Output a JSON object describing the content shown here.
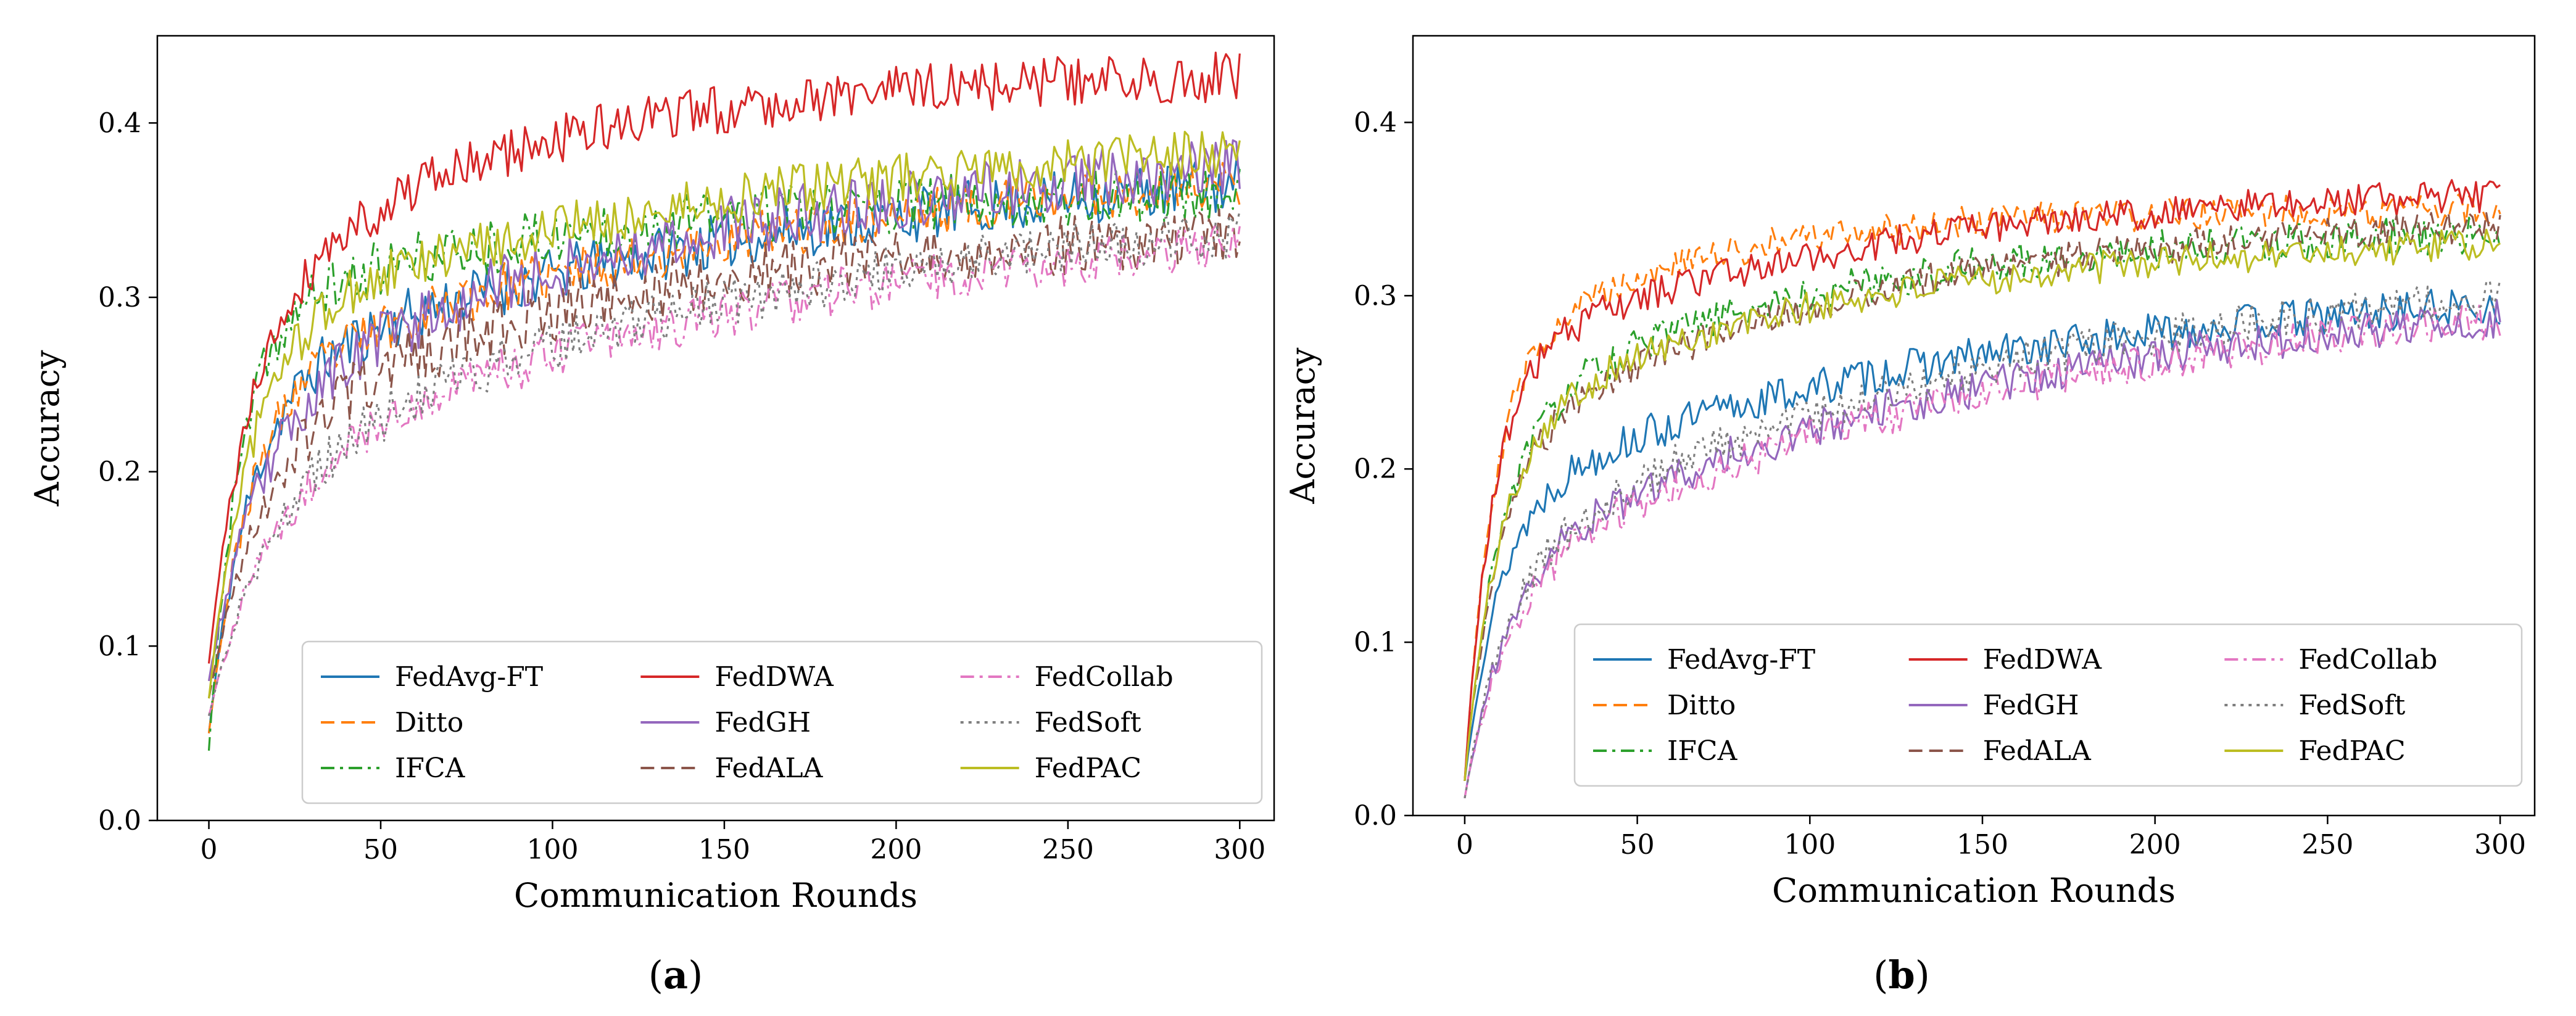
{
  "chart_data": [
    {
      "type": "line",
      "panel_label_open": "(",
      "panel_label_letter": "a",
      "panel_label_close": ")",
      "xlabel": "Communication Rounds",
      "ylabel": "Accuracy",
      "xlim": [
        -15,
        310
      ],
      "ylim": [
        0.0,
        0.45
      ],
      "xticks": [
        0,
        50,
        100,
        150,
        200,
        250,
        300
      ],
      "yticks": [
        0.0,
        0.1,
        0.2,
        0.3,
        0.4
      ],
      "xtick_labels": [
        "0",
        "50",
        "100",
        "150",
        "200",
        "250",
        "300"
      ],
      "ytick_labels": [
        "0.0",
        "0.1",
        "0.2",
        "0.3",
        "0.4"
      ],
      "grid": false,
      "legend_placement": "lower-right",
      "legend_columns": 3,
      "series": [
        {
          "name": "FedAvg-FT",
          "color": "#1f77b4",
          "dash": "solid",
          "start": 0.05,
          "rise": 10,
          "amp1": 0.2,
          "tau1": 12,
          "amp2": 0.135,
          "tau2": 160,
          "noise": 0.01,
          "seed": 11
        },
        {
          "name": "Ditto",
          "color": "#ff7f0e",
          "dash": "dashed",
          "start": 0.05,
          "rise": 10,
          "amp1": 0.2,
          "tau1": 12,
          "amp2": 0.14,
          "tau2": 170,
          "noise": 0.009,
          "seed": 23
        },
        {
          "name": "IFCA",
          "color": "#2ca02c",
          "dash": "dashdot",
          "start": 0.04,
          "rise": 8,
          "amp1": 0.25,
          "tau1": 9,
          "amp2": 0.075,
          "tau2": 110,
          "noise": 0.01,
          "seed": 37
        },
        {
          "name": "FedDWA",
          "color": "#d62728",
          "dash": "solid",
          "start": 0.09,
          "rise": 10,
          "amp1": 0.2,
          "tau1": 12,
          "amp2": 0.14,
          "tau2": 80,
          "noise": 0.009,
          "seed": 41
        },
        {
          "name": "FedGH",
          "color": "#9467bd",
          "dash": "solid",
          "start": 0.08,
          "rise": 12,
          "amp1": 0.15,
          "tau1": 15,
          "amp2": 0.16,
          "tau2": 130,
          "noise": 0.011,
          "seed": 53
        },
        {
          "name": "FedALA",
          "color": "#8c564b",
          "dash": "dashed",
          "start": 0.07,
          "rise": 12,
          "amp1": 0.14,
          "tau1": 15,
          "amp2": 0.13,
          "tau2": 100,
          "noise": 0.011,
          "seed": 67
        },
        {
          "name": "FedCollab",
          "color": "#e377c2",
          "dash": "dashdot",
          "start": 0.06,
          "rise": 14,
          "amp1": 0.13,
          "tau1": 18,
          "amp2": 0.16,
          "tau2": 150,
          "noise": 0.009,
          "seed": 71
        },
        {
          "name": "FedSoft",
          "color": "#7f7f7f",
          "dash": "dotted",
          "start": 0.06,
          "rise": 14,
          "amp1": 0.13,
          "tau1": 18,
          "amp2": 0.17,
          "tau2": 150,
          "noise": 0.009,
          "seed": 83
        },
        {
          "name": "FedPAC",
          "color": "#bcbd22",
          "dash": "solid",
          "start": 0.07,
          "rise": 10,
          "amp1": 0.21,
          "tau1": 12,
          "amp2": 0.12,
          "tau2": 150,
          "noise": 0.009,
          "seed": 97
        }
      ]
    },
    {
      "type": "line",
      "panel_label_open": "(",
      "panel_label_letter": "b",
      "panel_label_close": ")",
      "xlabel": "Communication Rounds",
      "ylabel": "Accuracy",
      "xlim": [
        -15,
        310
      ],
      "ylim": [
        0.0,
        0.45
      ],
      "xticks": [
        0,
        50,
        100,
        150,
        200,
        250,
        300
      ],
      "yticks": [
        0.0,
        0.1,
        0.2,
        0.3,
        0.4
      ],
      "xtick_labels": [
        "0",
        "50",
        "100",
        "150",
        "200",
        "250",
        "300"
      ],
      "ytick_labels": [
        "0.0",
        "0.1",
        "0.2",
        "0.3",
        "0.4"
      ],
      "grid": false,
      "legend_placement": "lower-right",
      "legend_columns": 3,
      "series": [
        {
          "name": "FedAvg-FT",
          "color": "#1f77b4",
          "dash": "solid",
          "start": 0.02,
          "rise": 8,
          "amp1": 0.16,
          "tau1": 10,
          "amp2": 0.13,
          "tau2": 140,
          "noise": 0.007,
          "seed": 13
        },
        {
          "name": "Ditto",
          "color": "#ff7f0e",
          "dash": "dashed",
          "start": 0.02,
          "rise": 6,
          "amp1": 0.24,
          "tau1": 8,
          "amp2": 0.09,
          "tau2": 60,
          "noise": 0.006,
          "seed": 29
        },
        {
          "name": "IFCA",
          "color": "#2ca02c",
          "dash": "dashdot",
          "start": 0.02,
          "rise": 8,
          "amp1": 0.2,
          "tau1": 10,
          "amp2": 0.12,
          "tau2": 90,
          "noise": 0.007,
          "seed": 31
        },
        {
          "name": "FedDWA",
          "color": "#d62728",
          "dash": "solid",
          "start": 0.02,
          "rise": 6,
          "amp1": 0.24,
          "tau1": 8,
          "amp2": 0.105,
          "tau2": 110,
          "noise": 0.006,
          "seed": 43
        },
        {
          "name": "FedGH",
          "color": "#9467bd",
          "dash": "solid",
          "start": 0.01,
          "rise": 10,
          "amp1": 0.13,
          "tau1": 12,
          "amp2": 0.17,
          "tau2": 150,
          "noise": 0.007,
          "seed": 59
        },
        {
          "name": "FedALA",
          "color": "#8c564b",
          "dash": "dashed",
          "start": 0.02,
          "rise": 8,
          "amp1": 0.19,
          "tau1": 10,
          "amp2": 0.14,
          "tau2": 110,
          "noise": 0.006,
          "seed": 61
        },
        {
          "name": "FedCollab",
          "color": "#e377c2",
          "dash": "dashdot",
          "start": 0.01,
          "rise": 10,
          "amp1": 0.12,
          "tau1": 12,
          "amp2": 0.18,
          "tau2": 150,
          "noise": 0.007,
          "seed": 73
        },
        {
          "name": "FedSoft",
          "color": "#7f7f7f",
          "dash": "dotted",
          "start": 0.01,
          "rise": 10,
          "amp1": 0.13,
          "tau1": 12,
          "amp2": 0.18,
          "tau2": 140,
          "noise": 0.007,
          "seed": 89
        },
        {
          "name": "FedPAC",
          "color": "#bcbd22",
          "dash": "solid",
          "start": 0.02,
          "rise": 8,
          "amp1": 0.2,
          "tau1": 10,
          "amp2": 0.115,
          "tau2": 100,
          "noise": 0.006,
          "seed": 101
        }
      ]
    }
  ]
}
